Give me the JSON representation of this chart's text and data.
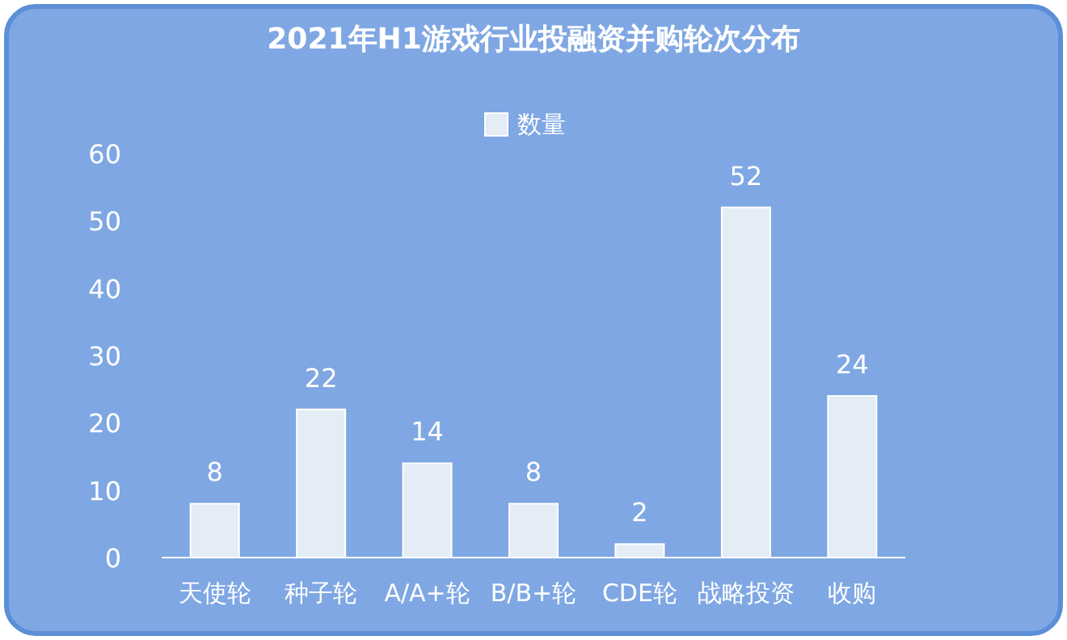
{
  "chart_data": {
    "type": "bar",
    "title": "2021年H1游戏行业投融资并购轮次分布",
    "categories": [
      "天使轮",
      "种子轮",
      "A/A+轮",
      "B/B+轮",
      "CDE轮",
      "战略投资",
      "收购"
    ],
    "series": [
      {
        "name": "数量",
        "color": "#e4ecf6",
        "values": [
          8,
          22,
          14,
          8,
          2,
          52,
          24
        ]
      }
    ],
    "data_labels": true,
    "ylim": [
      0,
      60
    ],
    "yticks": [
      0,
      10,
      20,
      30,
      40,
      50,
      60
    ],
    "legend": "top",
    "grid": false
  }
}
